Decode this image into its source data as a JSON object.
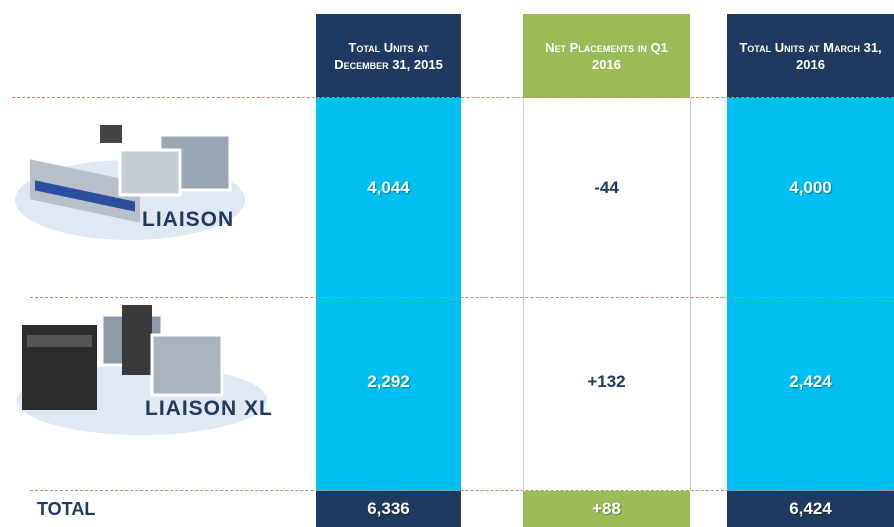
{
  "table": {
    "headers": [
      "Total Units at December 31, 2015",
      "Net Placements in Q1 2016",
      "Total Units at March 31, 2016"
    ],
    "rows": [
      {
        "product": "LIAISON",
        "values": [
          "4,044",
          "-44",
          "4,000"
        ]
      },
      {
        "product": "LIAISON XL",
        "values": [
          "2,292",
          "+132",
          "2,424"
        ]
      }
    ],
    "total": {
      "label": "TOTAL",
      "values": [
        "6,336",
        "+88",
        "6,424"
      ]
    }
  }
}
